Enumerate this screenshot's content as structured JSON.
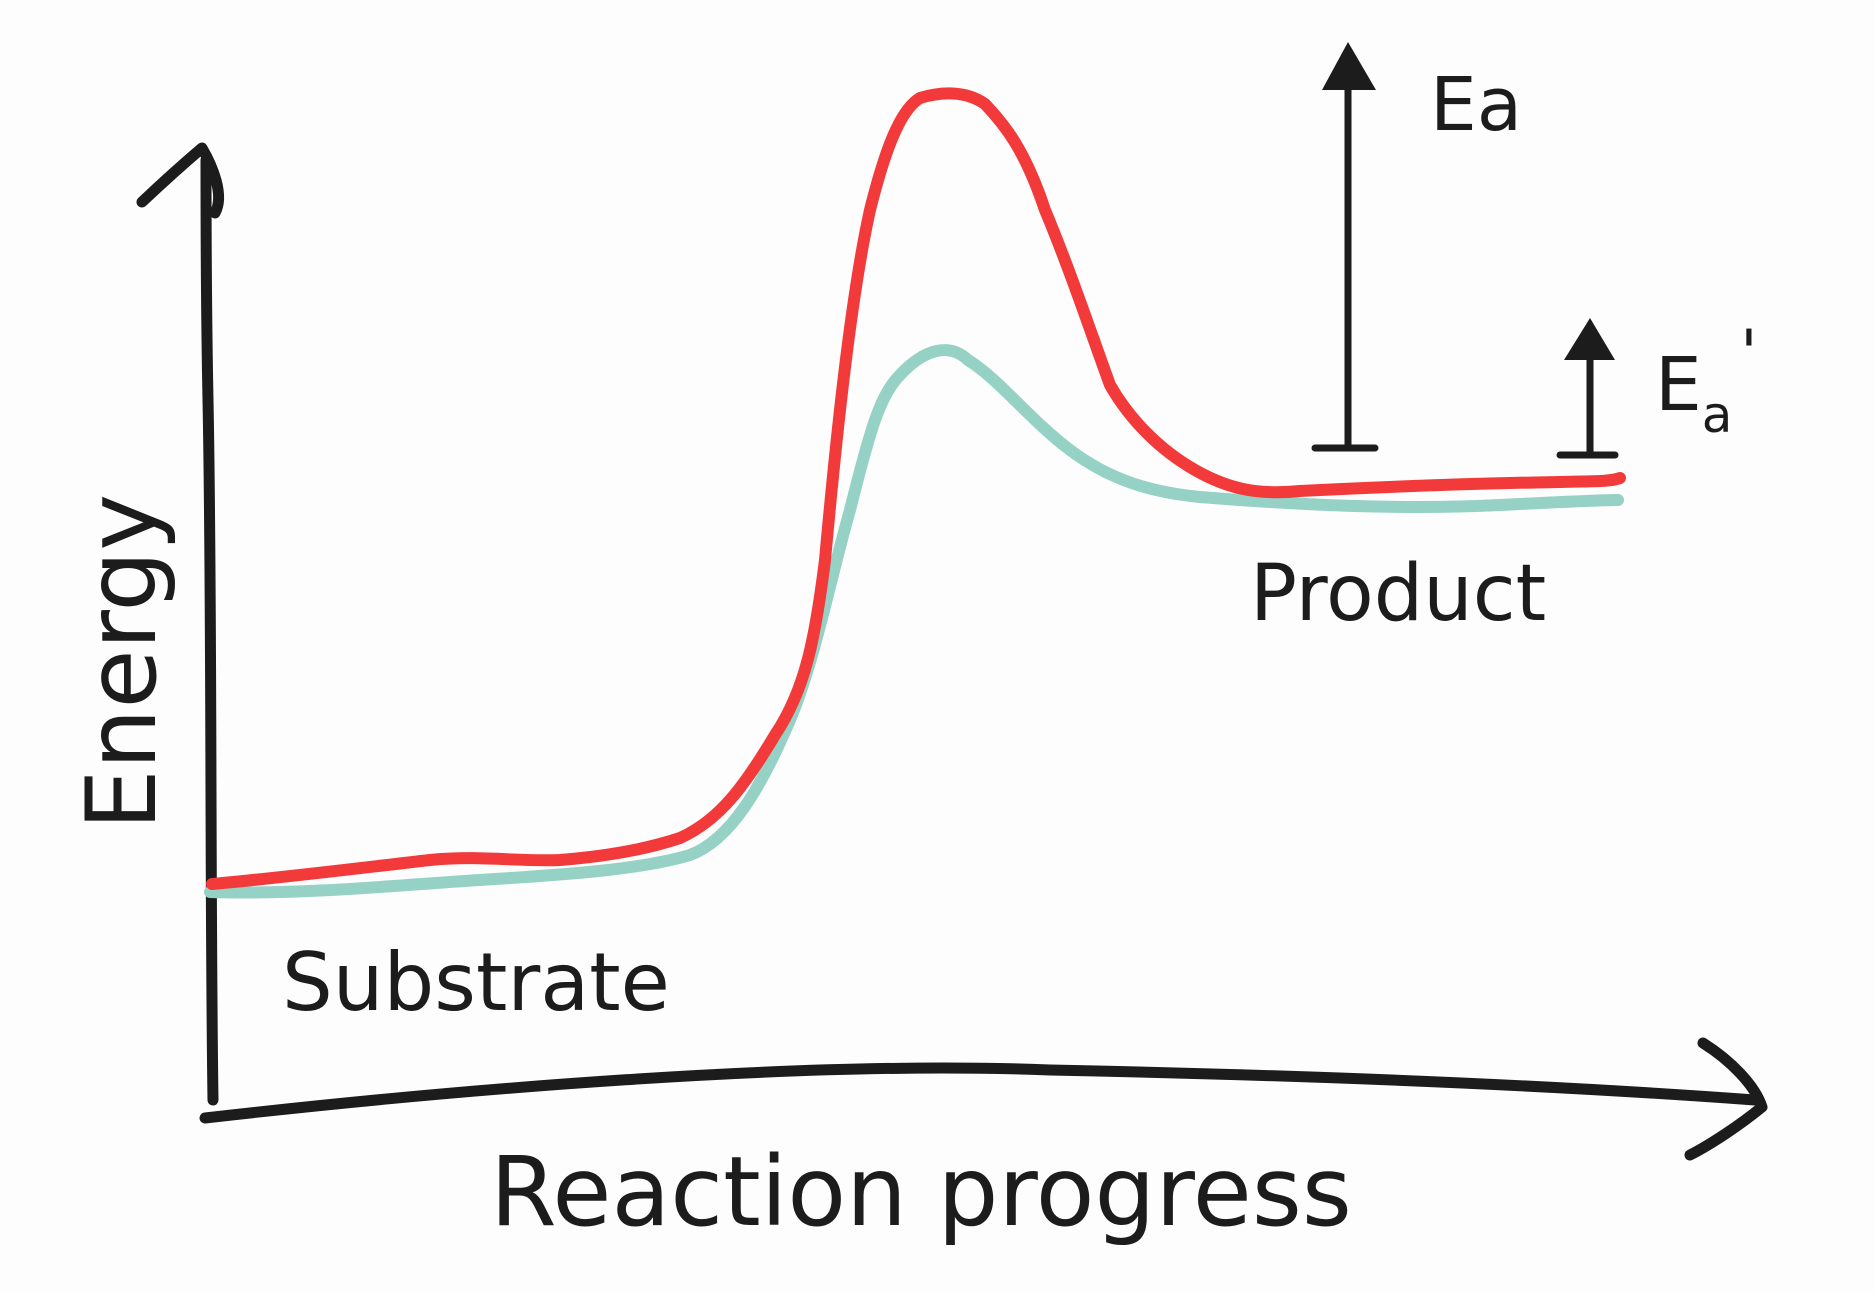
{
  "diagram": {
    "type": "energy-profile",
    "y_axis_label": "Energy",
    "x_axis_label": "Reaction progress",
    "substrate_label": "Substrate",
    "product_label": "Product",
    "ea_label": "Ea",
    "ea_prime_base": "E",
    "ea_prime_sub": "a",
    "ea_prime_mark": "'",
    "colors": {
      "ink": "#1c1c1c",
      "uncatalyzed_curve": "#f23a3a",
      "catalyzed_curve": "#96d1c6",
      "background": "#fdfdfd"
    }
  }
}
